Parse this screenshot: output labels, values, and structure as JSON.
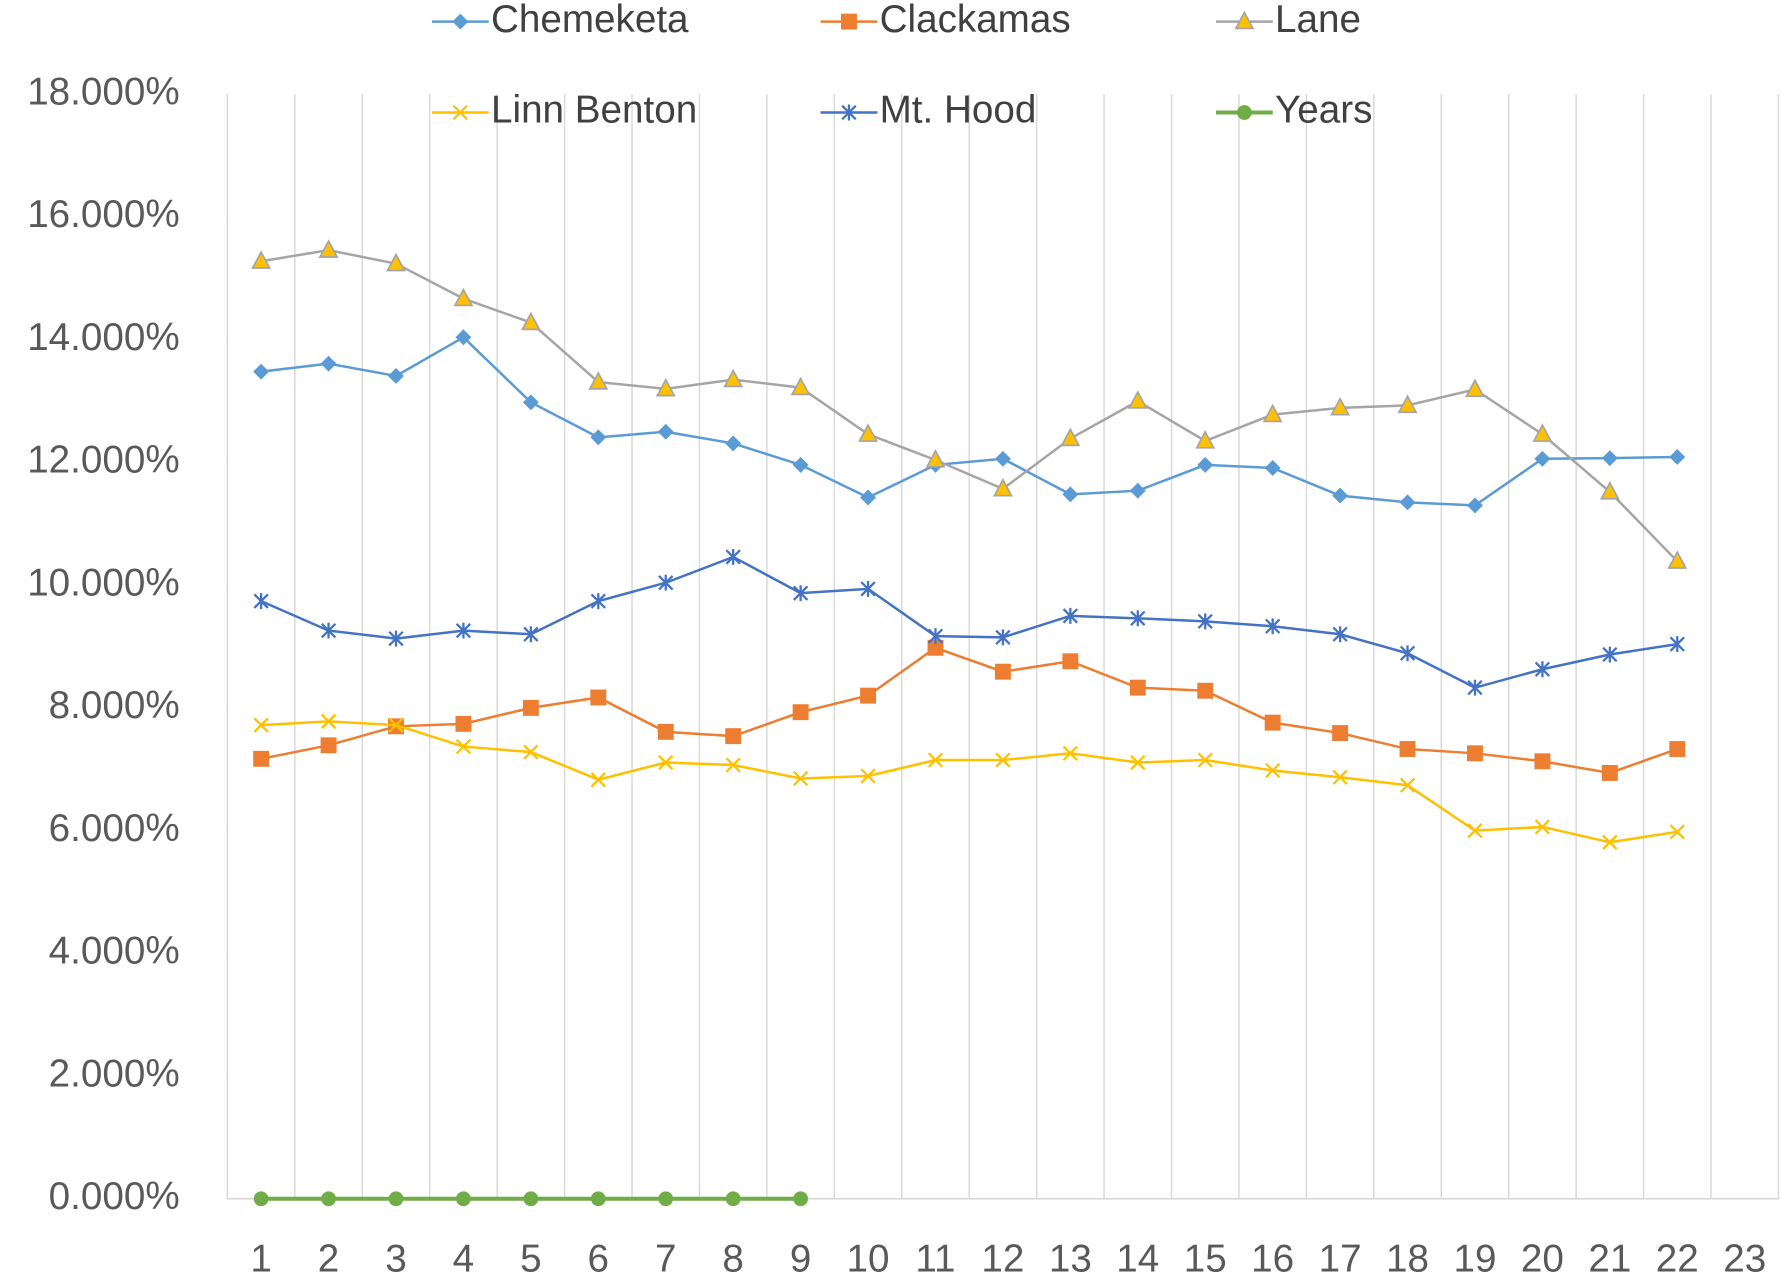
{
  "chart_data": {
    "type": "line",
    "categories": [
      "1",
      "2",
      "3",
      "4",
      "5",
      "6",
      "7",
      "8",
      "9",
      "10",
      "11",
      "12",
      "13",
      "14",
      "15",
      "16",
      "17",
      "18",
      "19",
      "20",
      "21",
      "22",
      "23"
    ],
    "ylim": [
      0,
      18
    ],
    "yticks": [
      {
        "value": 0,
        "label": "0.000%"
      },
      {
        "value": 2,
        "label": "2.000%"
      },
      {
        "value": 4,
        "label": "4.000%"
      },
      {
        "value": 6,
        "label": "6.000%"
      },
      {
        "value": 8,
        "label": "8.000%"
      },
      {
        "value": 10,
        "label": "10.000%"
      },
      {
        "value": 12,
        "label": "12.000%"
      },
      {
        "value": 14,
        "label": "14.000%"
      },
      {
        "value": 16,
        "label": "16.000%"
      },
      {
        "value": 18,
        "label": "18.000%"
      }
    ],
    "xgrid": true,
    "ygrid": false,
    "legend": "top",
    "series": [
      {
        "name": "Chemeketa",
        "color": "#5B9BD5",
        "marker": "diamond",
        "values": [
          13.48,
          13.61,
          13.41,
          14.04,
          12.98,
          12.41,
          12.5,
          12.31,
          11.96,
          11.43,
          11.96,
          12.06,
          11.48,
          11.54,
          11.96,
          11.91,
          11.46,
          11.35,
          11.3,
          12.06,
          12.07,
          12.09,
          null
        ]
      },
      {
        "name": "Clackamas",
        "color": "#ED7D31",
        "marker": "square",
        "values": [
          7.17,
          7.39,
          7.7,
          7.74,
          8.0,
          8.17,
          7.61,
          7.54,
          7.93,
          8.2,
          8.98,
          8.59,
          8.76,
          8.33,
          8.28,
          7.76,
          7.59,
          7.33,
          7.26,
          7.13,
          6.94,
          7.33,
          null
        ]
      },
      {
        "name": "Lane",
        "color": "#A5A5A5",
        "marker": "triangle",
        "marker_fill": "#FFC000",
        "values": [
          15.28,
          15.46,
          15.24,
          14.67,
          14.28,
          13.31,
          13.2,
          13.35,
          13.22,
          12.46,
          12.04,
          11.57,
          12.39,
          13.0,
          12.35,
          12.78,
          12.89,
          12.93,
          13.19,
          12.46,
          11.52,
          10.39,
          null
        ]
      },
      {
        "name": "Linn Benton",
        "color": "#FFC000",
        "marker": "x",
        "values": [
          7.72,
          7.78,
          7.72,
          7.37,
          7.28,
          6.83,
          7.11,
          7.07,
          6.85,
          6.89,
          7.15,
          7.15,
          7.26,
          7.11,
          7.15,
          6.98,
          6.87,
          6.74,
          6.0,
          6.06,
          5.81,
          5.98,
          null
        ]
      },
      {
        "name": "Mt. Hood",
        "color": "#4472C4",
        "marker": "star",
        "values": [
          9.74,
          9.26,
          9.13,
          9.26,
          9.2,
          9.74,
          10.04,
          10.46,
          9.87,
          9.94,
          9.17,
          9.15,
          9.5,
          9.46,
          9.41,
          9.33,
          9.2,
          8.89,
          8.33,
          8.63,
          8.87,
          9.04,
          null
        ]
      },
      {
        "name": "Years",
        "color": "#70AD47",
        "marker": "circle",
        "values": [
          0,
          0,
          0,
          0,
          0,
          0,
          0,
          0,
          0,
          null,
          null,
          null,
          null,
          null,
          null,
          null,
          null,
          null,
          null,
          null,
          null,
          null,
          null
        ]
      }
    ]
  }
}
